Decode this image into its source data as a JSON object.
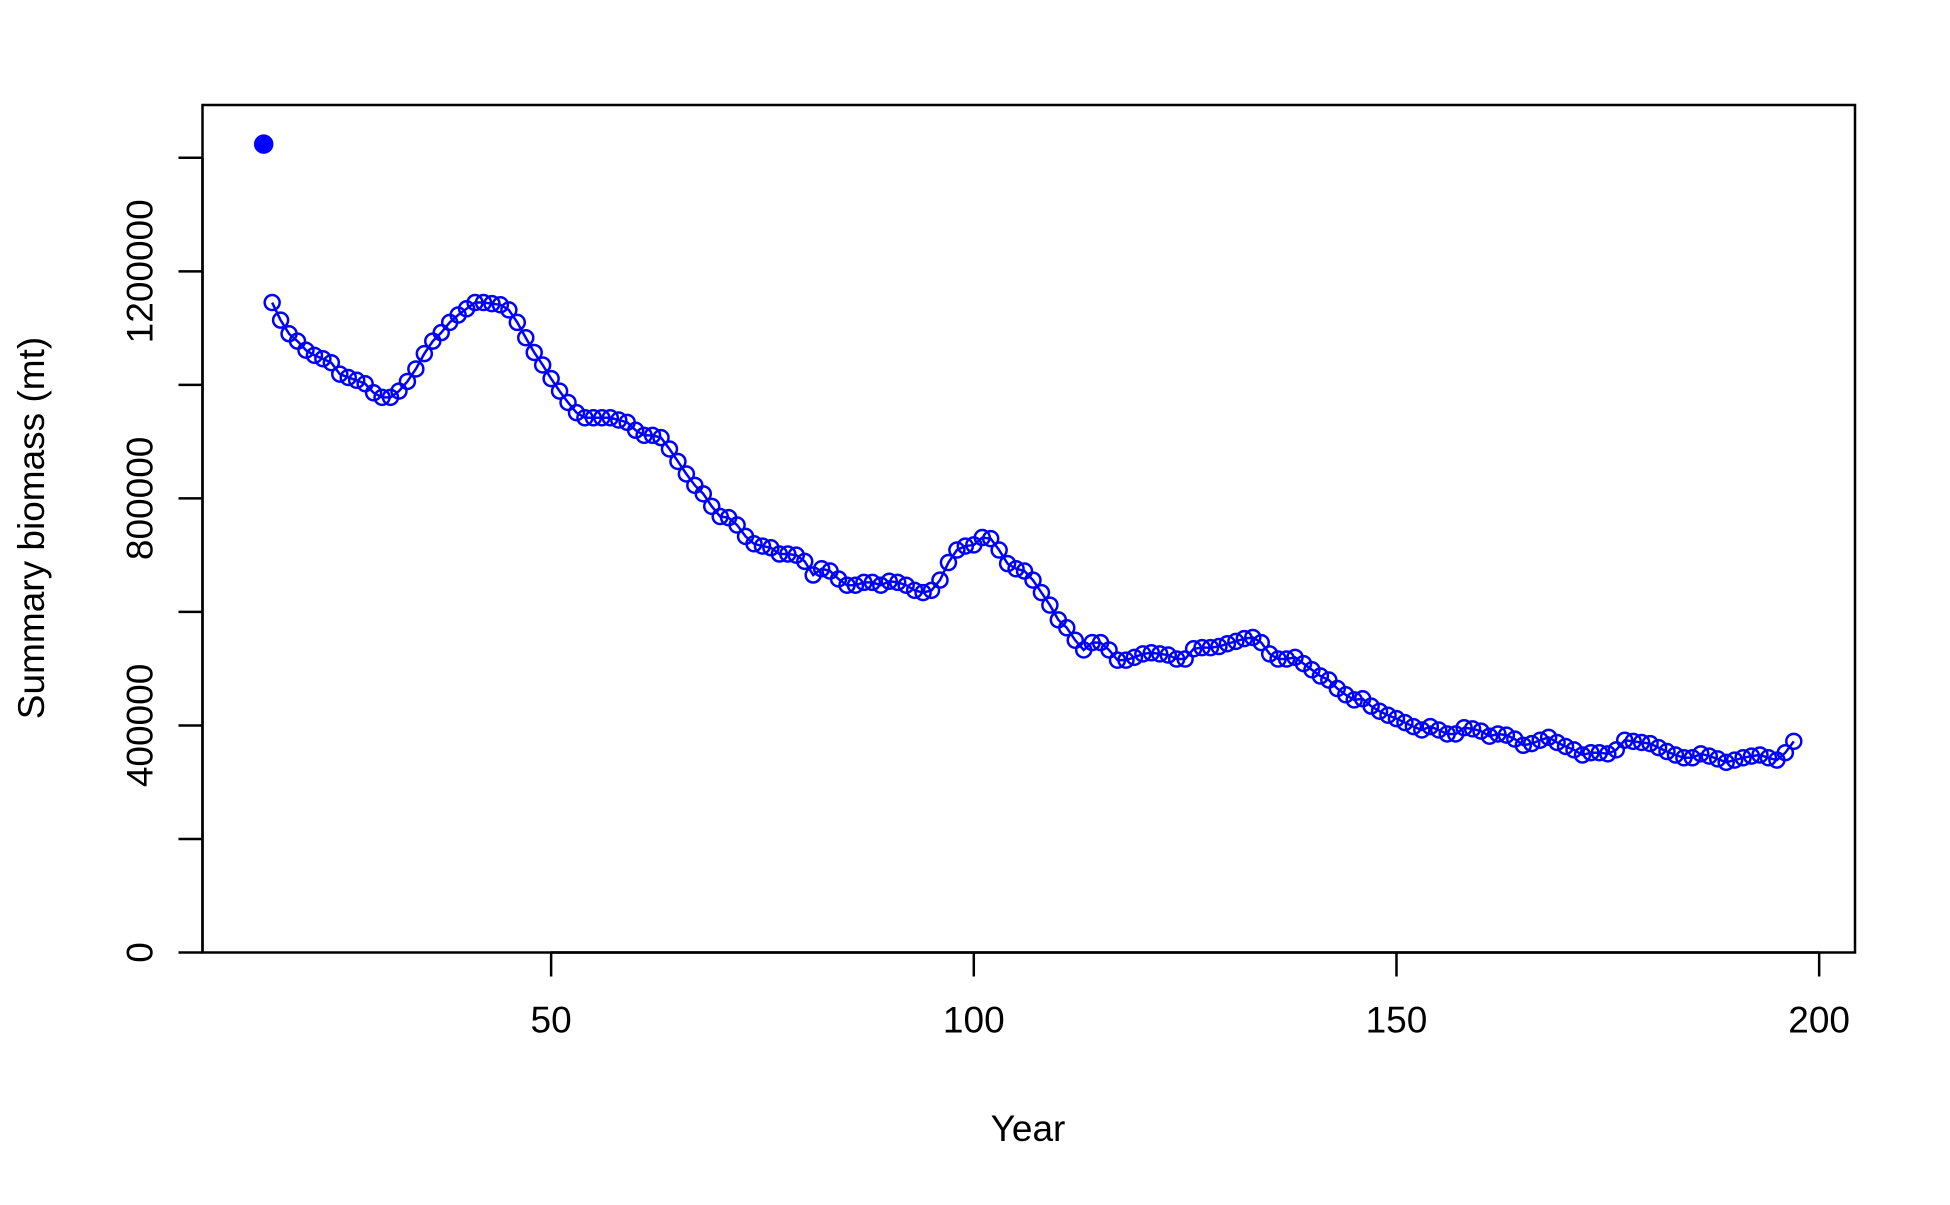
{
  "chart_data": {
    "type": "scatter",
    "xlabel": "Year",
    "ylabel": "Summary biomass (mt)",
    "xlim": [
      8.76,
      204.24
    ],
    "ylim": [
      0,
      1493000
    ],
    "xticks": [
      50,
      100,
      150,
      200
    ],
    "yticks": [
      0,
      400000,
      800000,
      1200000
    ],
    "yminor_ticks": [
      200000,
      600000,
      1000000,
      1400000
    ],
    "grid": false,
    "series": [
      {
        "color": "#0000ff",
        "marker": "filled",
        "line": false,
        "x": [
          16
        ],
        "values": [
          1424000
        ]
      },
      {
        "color": "#0000ff",
        "marker": "open",
        "line": true,
        "x": [
          17,
          18,
          19,
          20,
          21,
          22,
          23,
          24,
          25,
          26,
          27,
          28,
          29,
          30,
          31,
          32,
          33,
          34,
          35,
          36,
          37,
          38,
          39,
          40,
          41,
          42,
          43,
          44,
          45,
          46,
          47,
          48,
          49,
          50,
          51,
          52,
          53,
          54,
          55,
          56,
          57,
          58,
          59,
          60,
          61,
          62,
          63,
          64,
          65,
          66,
          67,
          68,
          69,
          70,
          71,
          72,
          73,
          74,
          75,
          76,
          77,
          78,
          79,
          80,
          81,
          82,
          83,
          84,
          85,
          86,
          87,
          88,
          89,
          90,
          91,
          92,
          93,
          94,
          95,
          96,
          97,
          98,
          99,
          100,
          101,
          102,
          103,
          104,
          105,
          106,
          107,
          108,
          109,
          110,
          111,
          112,
          113,
          114,
          115,
          116,
          117,
          118,
          119,
          120,
          121,
          122,
          123,
          124,
          125,
          126,
          127,
          128,
          129,
          130,
          131,
          132,
          133,
          134,
          135,
          136,
          137,
          138,
          139,
          140,
          141,
          142,
          143,
          144,
          145,
          146,
          147,
          148,
          149,
          150,
          151,
          152,
          153,
          154,
          155,
          156,
          157,
          158,
          159,
          160,
          161,
          162,
          163,
          164,
          165,
          166,
          167,
          168,
          169,
          170,
          171,
          172,
          173,
          174,
          175,
          176,
          177,
          178,
          179,
          180,
          181,
          182,
          183,
          184,
          185,
          186,
          187,
          188,
          189,
          190,
          191,
          192,
          193,
          194,
          195,
          196,
          197
        ],
        "values": [
          1145000,
          1114000,
          1090000,
          1077000,
          1061000,
          1052000,
          1046000,
          1039000,
          1019000,
          1013000,
          1008000,
          1002000,
          986000,
          978000,
          978000,
          989000,
          1006000,
          1028000,
          1055000,
          1077000,
          1092000,
          1110000,
          1123000,
          1134000,
          1145000,
          1145000,
          1143000,
          1141000,
          1132000,
          1110000,
          1083000,
          1057000,
          1035000,
          1011000,
          989000,
          969000,
          951000,
          942000,
          942000,
          942000,
          942000,
          938000,
          934000,
          920000,
          911000,
          911000,
          907000,
          887000,
          865000,
          843000,
          823000,
          808000,
          786000,
          768000,
          766000,
          753000,
          733000,
          720000,
          716000,
          713000,
          702000,
          702000,
          700000,
          689000,
          665000,
          676000,
          672000,
          658000,
          647000,
          647000,
          652000,
          652000,
          647000,
          654000,
          652000,
          647000,
          638000,
          634000,
          638000,
          656000,
          687000,
          709000,
          716000,
          718000,
          731000,
          729000,
          709000,
          685000,
          676000,
          672000,
          656000,
          634000,
          612000,
          586000,
          572000,
          550000,
          533000,
          546000,
          546000,
          533000,
          515000,
          515000,
          520000,
          526000,
          528000,
          526000,
          524000,
          517000,
          517000,
          535000,
          537000,
          537000,
          539000,
          544000,
          548000,
          553000,
          555000,
          546000,
          526000,
          517000,
          517000,
          520000,
          509000,
          498000,
          487000,
          480000,
          465000,
          454000,
          445000,
          447000,
          434000,
          425000,
          418000,
          412000,
          405000,
          398000,
          392000,
          398000,
          392000,
          385000,
          385000,
          396000,
          394000,
          390000,
          381000,
          385000,
          383000,
          376000,
          365000,
          368000,
          374000,
          379000,
          370000,
          363000,
          357000,
          348000,
          352000,
          352000,
          350000,
          357000,
          374000,
          372000,
          370000,
          368000,
          361000,
          354000,
          348000,
          343000,
          343000,
          350000,
          346000,
          341000,
          335000,
          339000,
          343000,
          346000,
          348000,
          343000,
          339000,
          352000,
          372000
        ]
      }
    ]
  }
}
